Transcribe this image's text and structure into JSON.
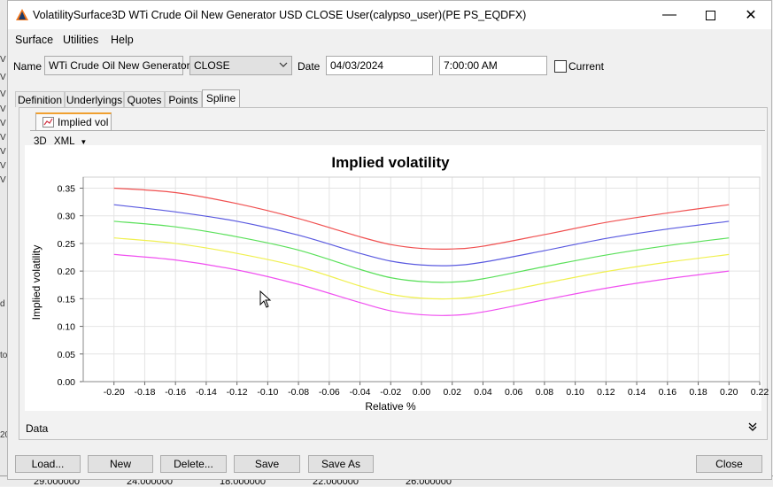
{
  "window": {
    "title": "VolatilitySurface3D WTi Crude Oil New Generator USD CLOSE User(calypso_user)(PE PS_EQDFX)",
    "minimize_icon": "minimize-icon",
    "maximize_icon": "maximize-icon",
    "close_icon": "close-icon"
  },
  "menu": {
    "items": [
      "Surface",
      "Utilities",
      "Help"
    ]
  },
  "form": {
    "name_label": "Name",
    "name_value": "WTi Crude Oil New Generator",
    "type_value": "CLOSE",
    "date_label": "Date",
    "date_value": "04/03/2024",
    "time_value": "7:00:00 AM",
    "current_label": "Current",
    "current_checked": false
  },
  "tabs": [
    "Definition",
    "Underlyings",
    "Quotes",
    "Points",
    "Spline"
  ],
  "active_tab": "Spline",
  "subtab": {
    "label": "Implied vol",
    "icon": "line-chart-icon"
  },
  "toolbar": {
    "three_d": "3D",
    "xml": "XML"
  },
  "data_label": "Data",
  "buttons": {
    "load": "Load...",
    "new": "New",
    "delete": "Delete...",
    "save": "Save",
    "save_as": "Save As",
    "close": "Close"
  },
  "background": {
    "left_fragments": [
      "V",
      "V",
      "V",
      "V",
      "V",
      "V",
      "V",
      "V",
      "V",
      "d",
      "to",
      "20"
    ],
    "bottom_values": [
      "29.000000",
      "24.000000",
      "18.000000",
      "22.000000",
      "26.000000"
    ]
  },
  "chart_data": {
    "type": "line",
    "title": "Implied volatility",
    "xlabel": "Relative %",
    "ylabel": "Implied volatility",
    "xlim": [
      -0.22,
      0.22
    ],
    "ylim": [
      0,
      0.37
    ],
    "x_ticks": [
      "-0.20",
      "-0.18",
      "-0.16",
      "-0.14",
      "-0.12",
      "-0.10",
      "-0.08",
      "-0.06",
      "-0.04",
      "-0.02",
      "0.00",
      "0.02",
      "0.04",
      "0.06",
      "0.08",
      "0.10",
      "0.12",
      "0.14",
      "0.16",
      "0.18",
      "0.20",
      "0.22"
    ],
    "y_ticks": [
      "0.00",
      "0.05",
      "0.10",
      "0.15",
      "0.20",
      "0.25",
      "0.30",
      "0.35"
    ],
    "grid": true,
    "x": [
      -0.2,
      -0.16,
      -0.12,
      -0.08,
      -0.04,
      -0.02,
      0.0,
      0.02,
      0.04,
      0.08,
      0.12,
      0.16,
      0.2
    ],
    "series": [
      {
        "color": "#f05050",
        "values": [
          0.35,
          0.342,
          0.322,
          0.295,
          0.262,
          0.248,
          0.241,
          0.24,
          0.245,
          0.266,
          0.288,
          0.305,
          0.32
        ]
      },
      {
        "color": "#5a5ae0",
        "values": [
          0.32,
          0.307,
          0.29,
          0.265,
          0.232,
          0.218,
          0.211,
          0.21,
          0.216,
          0.237,
          0.259,
          0.276,
          0.29
        ]
      },
      {
        "color": "#5ae05a",
        "values": [
          0.29,
          0.28,
          0.262,
          0.238,
          0.203,
          0.188,
          0.181,
          0.18,
          0.186,
          0.208,
          0.229,
          0.246,
          0.26
        ]
      },
      {
        "color": "#f0f050",
        "values": [
          0.26,
          0.25,
          0.232,
          0.208,
          0.173,
          0.158,
          0.151,
          0.15,
          0.156,
          0.178,
          0.199,
          0.216,
          0.23
        ]
      },
      {
        "color": "#f050f0",
        "values": [
          0.23,
          0.22,
          0.202,
          0.176,
          0.143,
          0.128,
          0.121,
          0.12,
          0.126,
          0.148,
          0.169,
          0.186,
          0.2
        ]
      }
    ]
  }
}
